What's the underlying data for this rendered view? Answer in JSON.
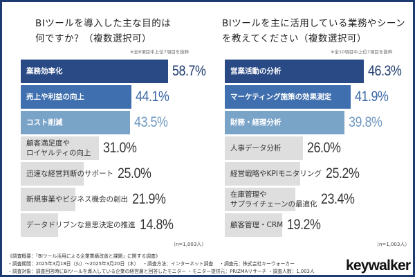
{
  "chart_data": [
    {
      "type": "bar",
      "orientation": "horizontal",
      "title": "BIツールを導入した主な目的は何ですか？（複数選択可）",
      "title_lines": [
        "BIツールを導入した主な目的は",
        "何ですか？（複数選択可）"
      ],
      "note": "※全8項目中上位7項目を抜粋",
      "sample_note": "（n=1,003人）",
      "unit": "%",
      "xlim": [
        0,
        58.7
      ],
      "categories": [
        "業務効率化",
        "売上や利益の向上",
        "コスト削減",
        "顧客満足度やロイヤルティの向上",
        "迅速な経営判断のサポート",
        "新規事業やビジネス機会の創出",
        "データドリブンな意思決定の推進"
      ],
      "category_lines": [
        [
          "業務効率化"
        ],
        [
          "売上や利益の向上"
        ],
        [
          "コスト削減"
        ],
        [
          "顧客満足度や",
          "ロイヤルティの向上"
        ],
        [
          "迅速な経営判断のサポート"
        ],
        [
          "新規事業やビジネス機会の創出"
        ],
        [
          "データドリブンな意思決定の推進"
        ]
      ],
      "values": [
        58.7,
        44.1,
        43.5,
        31.0,
        25.0,
        21.9,
        14.8
      ],
      "value_labels": [
        "58.7%",
        "44.1%",
        "43.5%",
        "31.0%",
        "25.0%",
        "21.9%",
        "14.8%"
      ],
      "bar_colors": [
        "#2a4a86",
        "#3f6fae",
        "#7aa3c8",
        "#dedede",
        "#dedede",
        "#dedede",
        "#dedede"
      ],
      "value_colors": [
        "#1f3a6e",
        "#3a67a6",
        "#6f98c0",
        "#333333",
        "#333333",
        "#333333",
        "#333333"
      ],
      "label_styles": [
        "light",
        "light",
        "light",
        "dark",
        "dark",
        "dark",
        "dark"
      ]
    },
    {
      "type": "bar",
      "orientation": "horizontal",
      "title": "BIツールを主に活用している業務やシーンを教えてください（複数選択可）",
      "title_lines": [
        "BIツールを主に活用している業務やシーン",
        "を教えてください（複数選択可）"
      ],
      "note": "※全10項目中上位7項目を抜粋",
      "sample_note": "（n=1,003人）",
      "unit": "%",
      "xlim": [
        0,
        46.3
      ],
      "categories": [
        "営業活動の分析",
        "マーケティング施策の効果測定",
        "財務・経理分析",
        "人事データ分析",
        "経営戦略やKPIモニタリング",
        "在庫管理やサプライチェーンの最適化",
        "顧客管理・CRM"
      ],
      "category_lines": [
        [
          "営業活動の分析"
        ],
        [
          "マーケティング施策の効果測定"
        ],
        [
          "財務・経理分析"
        ],
        [
          "人事データ分析"
        ],
        [
          "経営戦略やKPIモニタリング"
        ],
        [
          "在庫管理や",
          "サプライチェーンの最適化"
        ],
        [
          "顧客管理・CRM"
        ]
      ],
      "values": [
        46.3,
        41.9,
        39.8,
        26.0,
        25.2,
        23.4,
        19.2
      ],
      "value_labels": [
        "46.3%",
        "41.9%",
        "39.8%",
        "26.0%",
        "25.2%",
        "23.4%",
        "19.2%"
      ],
      "bar_colors": [
        "#2a4a86",
        "#3f6fae",
        "#7aa3c8",
        "#dedede",
        "#dedede",
        "#dedede",
        "#dedede"
      ],
      "value_colors": [
        "#1f3a6e",
        "#3a67a6",
        "#6f98c0",
        "#333333",
        "#333333",
        "#333333",
        "#333333"
      ],
      "label_styles": [
        "light",
        "light",
        "light",
        "dark",
        "dark",
        "dark",
        "dark"
      ]
    }
  ],
  "footer": {
    "lines": [
      "《調査概要：「BIツール活用による企業業績改善と課題」に関する調査》",
      "・調査期間：2025年3月18日（火）〜2025年3月20日（木）　 ・調査方法：インターネット調査　 ・調査元：株式会社キーウォーカー",
      "・調査対象：調査回答時にBIツールを導入している企業の経営層と回答したモニター ・モニター提供元：PRIZMAリサーチ ・調査人数：1,003人"
    ]
  },
  "brand": {
    "logo_text": "keywalker",
    "frame_color": "#1d3a73"
  }
}
